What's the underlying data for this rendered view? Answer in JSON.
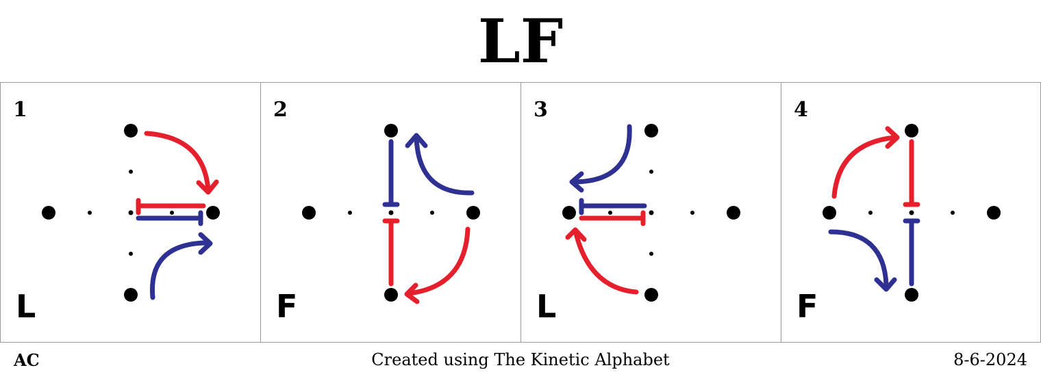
{
  "title": "LF",
  "colors": {
    "red": "#e51f2b",
    "blue": "#2e3192",
    "dot": "#000000"
  },
  "panels": [
    {
      "number": "1",
      "letter": "L"
    },
    {
      "number": "2",
      "letter": "F"
    },
    {
      "number": "3",
      "letter": "L"
    },
    {
      "number": "4",
      "letter": "F"
    }
  ],
  "footer": {
    "left": "AC",
    "center": "Created using The Kinetic Alphabet",
    "right": "8-6-2024"
  }
}
